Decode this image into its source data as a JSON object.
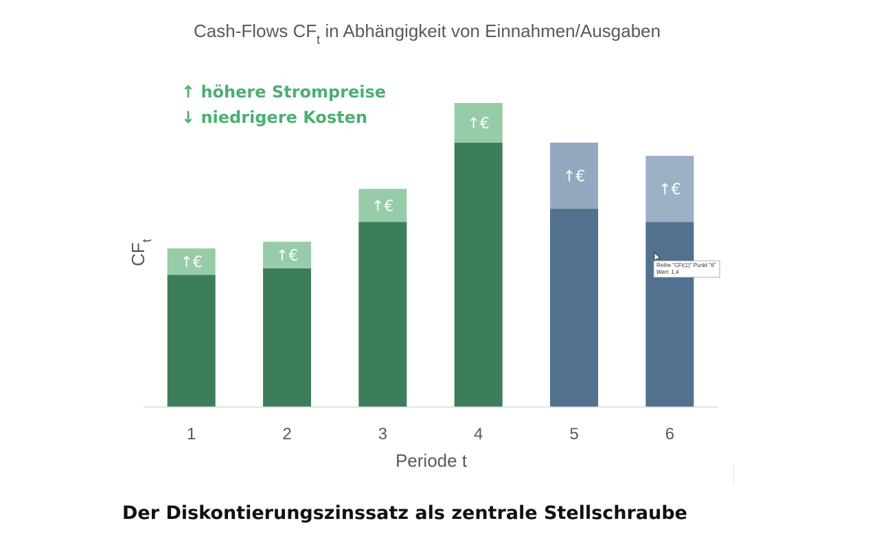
{
  "chart_data": {
    "type": "bar",
    "stacked": true,
    "title": {
      "main": "Cash-Flows CF",
      "subscript": "t",
      "rest": " in Abhängigkeit von Einnahmen/Ausgaben"
    },
    "xlabel": "Periode t",
    "ylabel": {
      "main": "CF",
      "subscript": "t"
    },
    "categories": [
      "1",
      "2",
      "3",
      "4",
      "5",
      "6"
    ],
    "ylim": [
      0,
      2.3
    ],
    "grid": false,
    "series": [
      {
        "values": [
          1.0,
          1.05,
          1.4,
          2.0,
          1.5,
          1.4
        ],
        "colors": [
          "#3c7e59",
          "#3c7e59",
          "#3c7e59",
          "#3c7e59",
          "#53708f",
          "#53708f"
        ]
      },
      {
        "values": [
          0.2,
          0.2,
          0.25,
          0.3,
          0.5,
          0.5
        ],
        "colors": [
          "#96cca8",
          "#96cca8",
          "#96cca8",
          "#96cca8",
          "#94a9c0",
          "#9cb0c6"
        ],
        "labels": [
          "↑€",
          "↑€",
          "↑€",
          "↑€",
          "↑€",
          "↑€"
        ]
      }
    ],
    "annotations": [
      "↑ höhere Strompreise",
      "↓ niedrigere Kosten"
    ],
    "tooltip": {
      "line1": "Reihe \"CFt(1)\" Punkt \"6\"",
      "line2": "Wert: 1,4",
      "category_index": 5
    },
    "colors": {
      "text": "#595959",
      "annotation": "#4caf73",
      "axis": "#d9d9d9"
    }
  },
  "caption": "Der Diskontierungszinssatz als zentrale Stellschraube"
}
